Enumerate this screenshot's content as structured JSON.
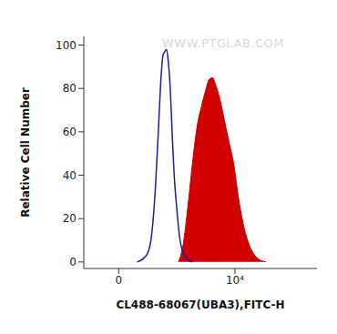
{
  "chart_data": {
    "type": "histogram",
    "x_label": "CL488-68067(UBA3),FITC-H",
    "y_label": "Relative Cell Number",
    "annotations": [
      "WWW.PTGLAB.COM"
    ],
    "log": "x",
    "xlim": [
      -300,
      262144
    ],
    "xticks": [
      {
        "value": 0,
        "label": "0"
      },
      {
        "value": 10000,
        "label": "10⁴"
      }
    ],
    "ylim": [
      -3,
      104
    ],
    "yticks": [
      0,
      20,
      40,
      60,
      80,
      100
    ],
    "grid": false,
    "series": [
      {
        "type": "line",
        "color": "#1c1ca8",
        "x": [
          108,
          199,
          259,
          331,
          382,
          437,
          478,
          522,
          569,
          619,
          674,
          733,
          796,
          900,
          1016,
          1191,
          1450,
          1762
        ],
        "values": [
          0,
          3,
          10,
          35,
          60,
          85,
          95,
          97,
          98,
          92,
          80,
          60,
          42,
          25,
          12,
          4,
          1,
          0
        ]
      },
      {
        "type": "area",
        "color": "#d10000",
        "x": [
          976,
          1191,
          1450,
          1762,
          2134,
          2585,
          3122,
          3491,
          4059,
          4542,
          5473,
          6584,
          7931,
          9543,
          11460,
          13800,
          16570,
          19880,
          23900,
          34500
        ],
        "values": [
          0,
          8,
          25,
          45,
          62,
          72,
          80,
          84,
          85,
          82,
          75,
          65,
          55,
          45,
          30,
          18,
          10,
          5,
          2,
          0
        ]
      }
    ]
  }
}
